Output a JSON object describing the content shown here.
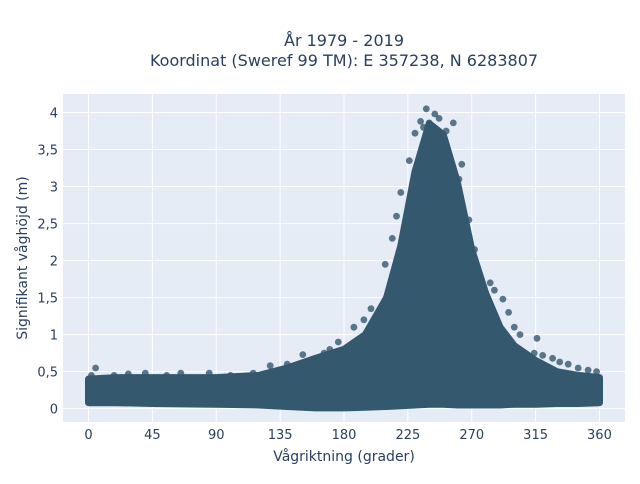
{
  "chart_data": {
    "type": "scatter",
    "title": "År 1979 - 2019",
    "subtitle": "Koordinat (Sweref 99 TM): E 357238, N 6283807",
    "xlabel": "Vågriktning (grader)",
    "ylabel": "Signifikant våghöjd (m)",
    "xlim": [
      -18,
      378
    ],
    "ylim": [
      -0.18,
      4.25
    ],
    "x_ticks": [
      0,
      45,
      90,
      135,
      180,
      225,
      270,
      315,
      360
    ],
    "x_tick_labels": [
      "0",
      "45",
      "90",
      "135",
      "180",
      "225",
      "270",
      "315",
      "360"
    ],
    "y_ticks": [
      0,
      0.5,
      1,
      1.5,
      2,
      2.5,
      3,
      3.5,
      4
    ],
    "y_tick_labels": [
      "0",
      "0,5",
      "1",
      "1,5",
      "2",
      "2,5",
      "3",
      "3,5",
      "4"
    ],
    "grid": true,
    "background": "#e5ecf6",
    "marker_color": "#34586e",
    "envelope": {
      "direction": [
        0,
        20,
        45,
        90,
        120,
        140,
        160,
        180,
        195,
        210,
        220,
        230,
        240,
        250,
        260,
        270,
        280,
        290,
        300,
        315,
        330,
        345,
        360
      ],
      "upper_height": [
        0.4,
        0.42,
        0.42,
        0.42,
        0.45,
        0.55,
        0.68,
        0.8,
        1.0,
        1.5,
        2.2,
        3.2,
        3.85,
        3.7,
        3.05,
        2.15,
        1.55,
        1.1,
        0.85,
        0.65,
        0.5,
        0.45,
        0.42
      ],
      "lower_height": [
        0.08,
        0.08,
        0.07,
        0.06,
        0.05,
        0.03,
        0.01,
        0.01,
        0.02,
        0.03,
        0.04,
        0.05,
        0.06,
        0.06,
        0.05,
        0.05,
        0.05,
        0.05,
        0.06,
        0.06,
        0.07,
        0.07,
        0.08
      ]
    },
    "points": [
      {
        "x": 238,
        "y": 4.05
      },
      {
        "x": 244,
        "y": 3.98
      },
      {
        "x": 247,
        "y": 3.92
      },
      {
        "x": 234,
        "y": 3.88
      },
      {
        "x": 240,
        "y": 3.86
      },
      {
        "x": 257,
        "y": 3.86
      },
      {
        "x": 236,
        "y": 3.8
      },
      {
        "x": 242,
        "y": 3.78
      },
      {
        "x": 252,
        "y": 3.75
      },
      {
        "x": 230,
        "y": 3.72
      },
      {
        "x": 249,
        "y": 3.65
      },
      {
        "x": 226,
        "y": 3.35
      },
      {
        "x": 263,
        "y": 3.3
      },
      {
        "x": 261,
        "y": 3.1
      },
      {
        "x": 220,
        "y": 2.92
      },
      {
        "x": 217,
        "y": 2.6
      },
      {
        "x": 268,
        "y": 2.55
      },
      {
        "x": 272,
        "y": 2.15
      },
      {
        "x": 214,
        "y": 2.3
      },
      {
        "x": 209,
        "y": 1.95
      },
      {
        "x": 283,
        "y": 1.7
      },
      {
        "x": 286,
        "y": 1.6
      },
      {
        "x": 292,
        "y": 1.48
      },
      {
        "x": 296,
        "y": 1.3
      },
      {
        "x": 300,
        "y": 1.1
      },
      {
        "x": 304,
        "y": 1.0
      },
      {
        "x": 316,
        "y": 0.95
      },
      {
        "x": 314,
        "y": 0.75
      },
      {
        "x": 327,
        "y": 0.68
      },
      {
        "x": 320,
        "y": 0.72
      },
      {
        "x": 199,
        "y": 1.35
      },
      {
        "x": 194,
        "y": 1.2
      },
      {
        "x": 187,
        "y": 1.1
      },
      {
        "x": 176,
        "y": 0.9
      },
      {
        "x": 170,
        "y": 0.8
      },
      {
        "x": 166,
        "y": 0.75
      },
      {
        "x": 151,
        "y": 0.73
      },
      {
        "x": 157,
        "y": 0.65
      },
      {
        "x": 140,
        "y": 0.6
      },
      {
        "x": 128,
        "y": 0.58
      },
      {
        "x": 116,
        "y": 0.48
      },
      {
        "x": 100,
        "y": 0.45
      },
      {
        "x": 85,
        "y": 0.48
      },
      {
        "x": 65,
        "y": 0.48
      },
      {
        "x": 55,
        "y": 0.45
      },
      {
        "x": 40,
        "y": 0.48
      },
      {
        "x": 28,
        "y": 0.47
      },
      {
        "x": 18,
        "y": 0.45
      },
      {
        "x": 5,
        "y": 0.55
      },
      {
        "x": 2,
        "y": 0.45
      },
      {
        "x": 345,
        "y": 0.55
      },
      {
        "x": 352,
        "y": 0.52
      },
      {
        "x": 358,
        "y": 0.5
      },
      {
        "x": 338,
        "y": 0.6
      },
      {
        "x": 332,
        "y": 0.63
      }
    ]
  }
}
